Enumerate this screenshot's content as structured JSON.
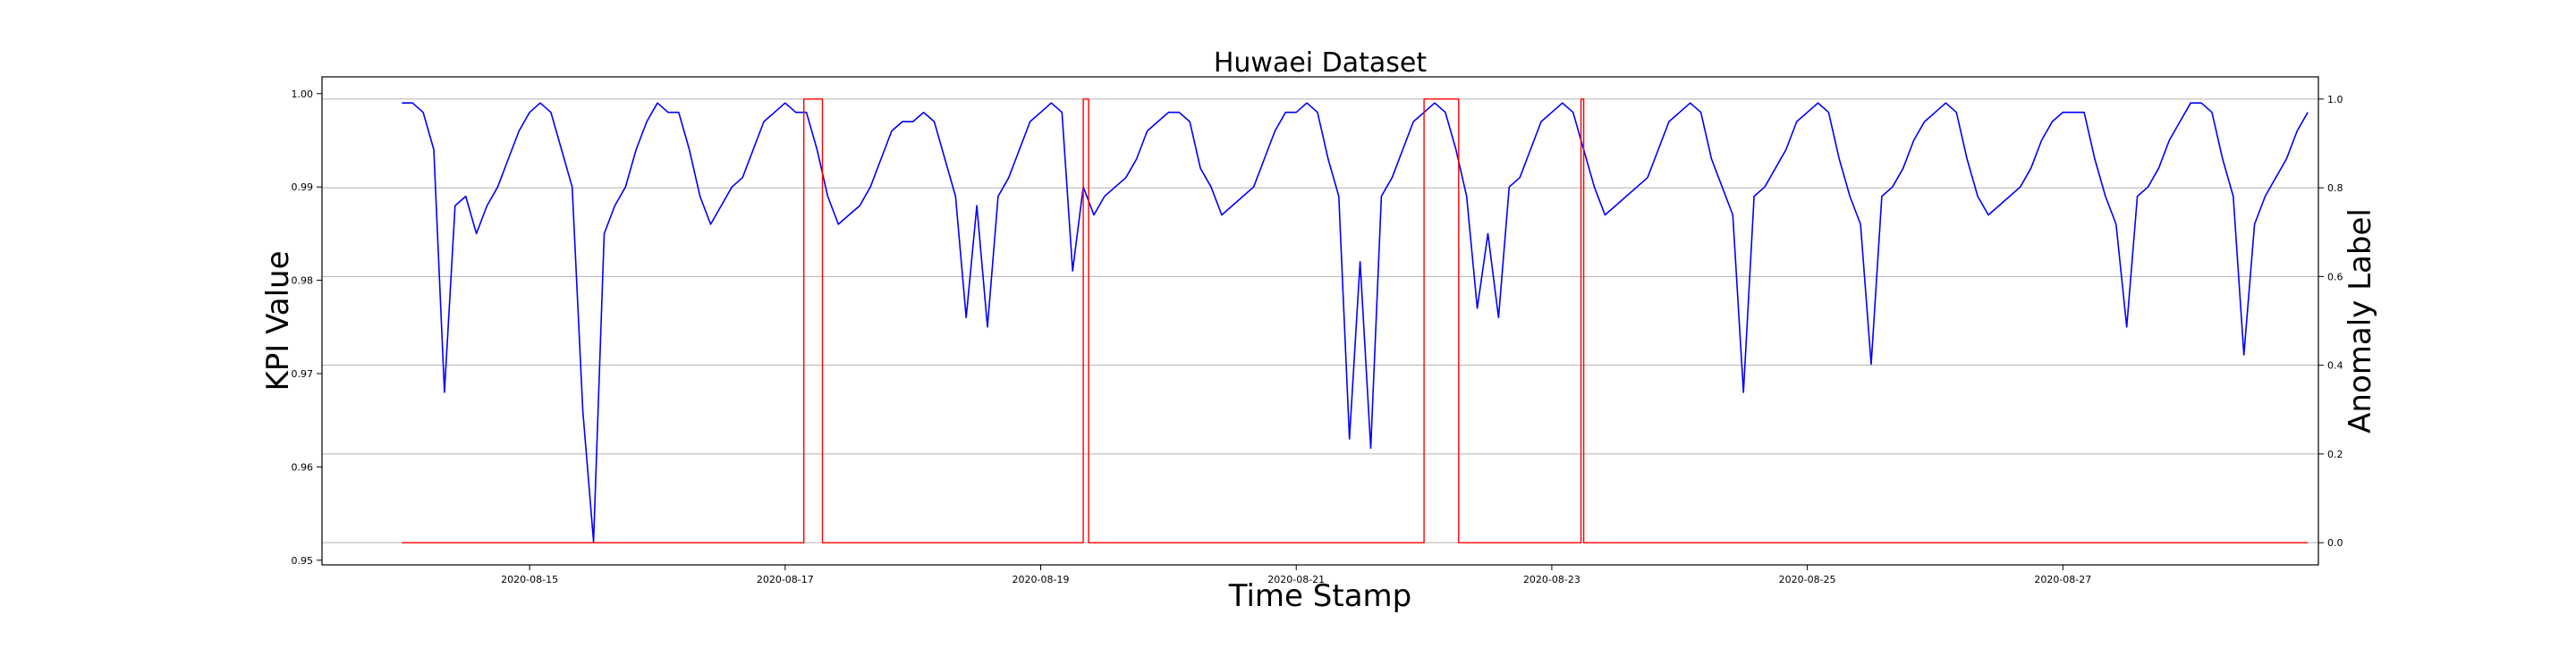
{
  "chart_data": {
    "type": "line",
    "title": "Huwaei Dataset",
    "xlabel": "Time Stamp",
    "ylabel": "KPI Value",
    "y2label": "Anomaly Label",
    "grid": true,
    "xlim": [
      "2020-08-13T09:00",
      "2020-08-29T00:00"
    ],
    "ylim": [
      0.9495,
      1.0018
    ],
    "y2lim": [
      -0.05,
      1.05
    ],
    "x_ticks": [
      "2020-08-15",
      "2020-08-17",
      "2020-08-19",
      "2020-08-21",
      "2020-08-23",
      "2020-08-25",
      "2020-08-27"
    ],
    "y_ticks": [
      "0.95",
      "0.96",
      "0.97",
      "0.98",
      "0.99",
      "1.00"
    ],
    "y2_ticks": [
      "0.0",
      "0.2",
      "0.4",
      "0.6",
      "0.8",
      "1.0"
    ],
    "colors": {
      "kpi": "#0000ff",
      "label": "#ff0000"
    },
    "series": [
      {
        "axis": "left",
        "color": "#0000ff",
        "x": [
          "2020-08-14T00:00",
          "2020-08-14T02:00",
          "2020-08-14T04:00",
          "2020-08-14T06:00",
          "2020-08-14T08:00",
          "2020-08-14T10:00",
          "2020-08-14T12:00",
          "2020-08-14T14:00",
          "2020-08-14T16:00",
          "2020-08-14T18:00",
          "2020-08-14T20:00",
          "2020-08-14T22:00",
          "2020-08-15T00:00",
          "2020-08-15T02:00",
          "2020-08-15T04:00",
          "2020-08-15T06:00",
          "2020-08-15T08:00",
          "2020-08-15T10:00",
          "2020-08-15T12:00",
          "2020-08-15T14:00",
          "2020-08-15T16:00",
          "2020-08-15T18:00",
          "2020-08-15T20:00",
          "2020-08-15T22:00",
          "2020-08-16T00:00",
          "2020-08-16T02:00",
          "2020-08-16T04:00",
          "2020-08-16T06:00",
          "2020-08-16T08:00",
          "2020-08-16T10:00",
          "2020-08-16T12:00",
          "2020-08-16T14:00",
          "2020-08-16T16:00",
          "2020-08-16T18:00",
          "2020-08-16T20:00",
          "2020-08-16T22:00",
          "2020-08-17T00:00",
          "2020-08-17T02:00",
          "2020-08-17T04:00",
          "2020-08-17T06:00",
          "2020-08-17T08:00",
          "2020-08-17T10:00",
          "2020-08-17T12:00",
          "2020-08-17T14:00",
          "2020-08-17T16:00",
          "2020-08-17T18:00",
          "2020-08-17T20:00",
          "2020-08-17T22:00",
          "2020-08-18T00:00",
          "2020-08-18T02:00",
          "2020-08-18T04:00",
          "2020-08-18T06:00",
          "2020-08-18T08:00",
          "2020-08-18T10:00",
          "2020-08-18T12:00",
          "2020-08-18T14:00",
          "2020-08-18T16:00",
          "2020-08-18T18:00",
          "2020-08-18T20:00",
          "2020-08-18T22:00",
          "2020-08-19T00:00",
          "2020-08-19T02:00",
          "2020-08-19T04:00",
          "2020-08-19T06:00",
          "2020-08-19T08:00",
          "2020-08-19T10:00",
          "2020-08-19T12:00",
          "2020-08-19T14:00",
          "2020-08-19T16:00",
          "2020-08-19T18:00",
          "2020-08-19T20:00",
          "2020-08-19T22:00",
          "2020-08-20T00:00",
          "2020-08-20T02:00",
          "2020-08-20T04:00",
          "2020-08-20T06:00",
          "2020-08-20T08:00",
          "2020-08-20T10:00",
          "2020-08-20T12:00",
          "2020-08-20T14:00",
          "2020-08-20T16:00",
          "2020-08-20T18:00",
          "2020-08-20T20:00",
          "2020-08-20T22:00",
          "2020-08-21T00:00",
          "2020-08-21T02:00",
          "2020-08-21T04:00",
          "2020-08-21T06:00",
          "2020-08-21T08:00",
          "2020-08-21T10:00",
          "2020-08-21T12:00",
          "2020-08-21T14:00",
          "2020-08-21T16:00",
          "2020-08-21T18:00",
          "2020-08-21T20:00",
          "2020-08-21T22:00",
          "2020-08-22T00:00",
          "2020-08-22T02:00",
          "2020-08-22T04:00",
          "2020-08-22T06:00",
          "2020-08-22T08:00",
          "2020-08-22T10:00",
          "2020-08-22T12:00",
          "2020-08-22T14:00",
          "2020-08-22T16:00",
          "2020-08-22T18:00",
          "2020-08-22T20:00",
          "2020-08-22T22:00",
          "2020-08-23T00:00",
          "2020-08-23T02:00",
          "2020-08-23T04:00",
          "2020-08-23T06:00",
          "2020-08-23T08:00",
          "2020-08-23T10:00",
          "2020-08-23T12:00",
          "2020-08-23T14:00",
          "2020-08-23T16:00",
          "2020-08-23T18:00",
          "2020-08-23T20:00",
          "2020-08-23T22:00",
          "2020-08-24T00:00",
          "2020-08-24T02:00",
          "2020-08-24T04:00",
          "2020-08-24T06:00",
          "2020-08-24T08:00",
          "2020-08-24T10:00",
          "2020-08-24T12:00",
          "2020-08-24T14:00",
          "2020-08-24T16:00",
          "2020-08-24T18:00",
          "2020-08-24T20:00",
          "2020-08-24T22:00",
          "2020-08-25T00:00",
          "2020-08-25T02:00",
          "2020-08-25T04:00",
          "2020-08-25T06:00",
          "2020-08-25T08:00",
          "2020-08-25T10:00",
          "2020-08-25T12:00",
          "2020-08-25T14:00",
          "2020-08-25T16:00",
          "2020-08-25T18:00",
          "2020-08-25T20:00",
          "2020-08-25T22:00",
          "2020-08-26T00:00",
          "2020-08-26T02:00",
          "2020-08-26T04:00",
          "2020-08-26T06:00",
          "2020-08-26T08:00",
          "2020-08-26T10:00",
          "2020-08-26T12:00",
          "2020-08-26T14:00",
          "2020-08-26T16:00",
          "2020-08-26T18:00",
          "2020-08-26T20:00",
          "2020-08-26T22:00",
          "2020-08-27T00:00",
          "2020-08-27T02:00",
          "2020-08-27T04:00",
          "2020-08-27T06:00",
          "2020-08-27T08:00",
          "2020-08-27T10:00",
          "2020-08-27T12:00",
          "2020-08-27T14:00",
          "2020-08-27T16:00",
          "2020-08-27T18:00",
          "2020-08-27T20:00",
          "2020-08-27T22:00",
          "2020-08-28T00:00",
          "2020-08-28T02:00",
          "2020-08-28T04:00",
          "2020-08-28T06:00",
          "2020-08-28T08:00",
          "2020-08-28T10:00",
          "2020-08-28T12:00",
          "2020-08-28T14:00",
          "2020-08-28T16:00",
          "2020-08-28T18:00",
          "2020-08-28T20:00",
          "2020-08-28T22:00"
        ],
        "y": [
          0.999,
          0.999,
          0.998,
          0.994,
          0.968,
          0.988,
          0.989,
          0.985,
          0.988,
          0.99,
          0.993,
          0.996,
          0.998,
          0.999,
          0.998,
          0.994,
          0.99,
          0.966,
          0.952,
          0.985,
          0.988,
          0.99,
          0.994,
          0.997,
          0.999,
          0.998,
          0.998,
          0.994,
          0.989,
          0.986,
          0.988,
          0.99,
          0.991,
          0.994,
          0.997,
          0.998,
          0.999,
          0.998,
          0.998,
          0.994,
          0.989,
          0.986,
          0.987,
          0.988,
          0.99,
          0.993,
          0.996,
          0.997,
          0.997,
          0.998,
          0.997,
          0.993,
          0.989,
          0.976,
          0.988,
          0.975,
          0.989,
          0.991,
          0.994,
          0.997,
          0.998,
          0.999,
          0.998,
          0.981,
          0.99,
          0.987,
          0.989,
          0.99,
          0.991,
          0.993,
          0.996,
          0.997,
          0.998,
          0.998,
          0.997,
          0.992,
          0.99,
          0.987,
          0.988,
          0.989,
          0.99,
          0.993,
          0.996,
          0.998,
          0.998,
          0.999,
          0.998,
          0.993,
          0.989,
          0.963,
          0.982,
          0.962,
          0.989,
          0.991,
          0.994,
          0.997,
          0.998,
          0.999,
          0.998,
          0.994,
          0.989,
          0.977,
          0.985,
          0.976,
          0.99,
          0.991,
          0.994,
          0.997,
          0.998,
          0.999,
          0.998,
          0.994,
          0.99,
          0.987,
          0.988,
          0.989,
          0.99,
          0.991,
          0.994,
          0.997,
          0.998,
          0.999,
          0.998,
          0.993,
          0.99,
          0.987,
          0.968,
          0.989,
          0.99,
          0.992,
          0.994,
          0.997,
          0.998,
          0.999,
          0.998,
          0.993,
          0.989,
          0.986,
          0.971,
          0.989,
          0.99,
          0.992,
          0.995,
          0.997,
          0.998,
          0.999,
          0.998,
          0.993,
          0.989,
          0.987,
          0.988,
          0.989,
          0.99,
          0.992,
          0.995,
          0.997,
          0.998,
          0.998,
          0.998,
          0.993,
          0.989,
          0.986,
          0.975,
          0.989,
          0.99,
          0.992,
          0.995,
          0.997,
          0.999,
          0.999,
          0.998,
          0.993,
          0.989,
          0.972,
          0.986,
          0.989,
          0.991,
          0.993,
          0.996,
          0.998
        ]
      },
      {
        "axis": "right",
        "color": "#ff0000",
        "x": [
          "2020-08-14T00:00",
          "2020-08-17T03:30",
          "2020-08-17T03:30",
          "2020-08-17T07:00",
          "2020-08-17T07:00",
          "2020-08-19T08:00",
          "2020-08-19T08:00",
          "2020-08-19T09:00",
          "2020-08-19T09:00",
          "2020-08-22T00:00",
          "2020-08-22T00:00",
          "2020-08-22T06:30",
          "2020-08-22T06:30",
          "2020-08-23T05:30",
          "2020-08-23T05:30",
          "2020-08-23T06:00",
          "2020-08-23T06:00",
          "2020-08-28T22:00"
        ],
        "y": [
          0,
          0,
          1,
          1,
          0,
          0,
          1,
          1,
          0,
          0,
          1,
          1,
          0,
          0,
          1,
          1,
          0,
          0
        ]
      }
    ]
  }
}
